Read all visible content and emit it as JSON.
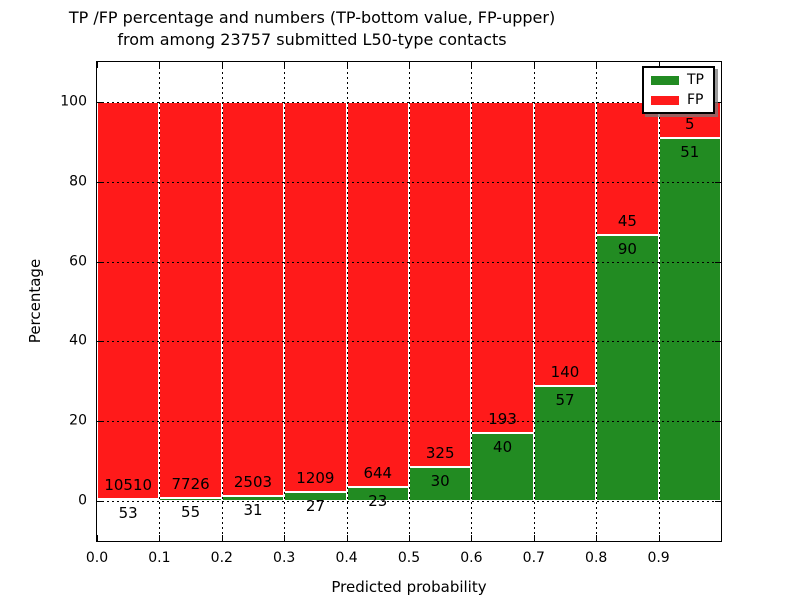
{
  "title": {
    "line1": "TP /FP percentage and numbers (TP-bottom value, FP-upper)",
    "line2": "from among 23757 submitted L50-type contacts"
  },
  "axes": {
    "x_label": "Predicted probability",
    "y_label": "Percentage",
    "x_ticks": [
      "0.0",
      "0.1",
      "0.2",
      "0.3",
      "0.4",
      "0.5",
      "0.6",
      "0.7",
      "0.8",
      "0.9"
    ],
    "y_ticks": [
      "0",
      "20",
      "40",
      "60",
      "80",
      "100"
    ]
  },
  "legend": {
    "items": [
      {
        "label": "TP",
        "color": "#228b22"
      },
      {
        "label": "FP",
        "color": "#ff1a1a"
      }
    ],
    "position": "upper right"
  },
  "chart_data": {
    "type": "bar",
    "stacked": true,
    "title": "TP /FP percentage and numbers (TP-bottom value, FP-upper) from among 23757 submitted L50-type contacts",
    "xlabel": "Predicted probability",
    "ylabel": "Percentage",
    "total_submitted": 23757,
    "bins": [
      "0.0-0.1",
      "0.1-0.2",
      "0.2-0.3",
      "0.3-0.4",
      "0.4-0.5",
      "0.5-0.6",
      "0.6-0.7",
      "0.7-0.8",
      "0.8-0.9",
      "0.9-1.0"
    ],
    "bin_centers": [
      0.05,
      0.15,
      0.25,
      0.35,
      0.45,
      0.55,
      0.65,
      0.75,
      0.85,
      0.95
    ],
    "series": [
      {
        "name": "TP",
        "color": "#228b22",
        "counts": [
          53,
          55,
          31,
          27,
          23,
          30,
          40,
          57,
          90,
          51
        ],
        "percent": [
          0.5,
          0.71,
          1.22,
          2.18,
          3.45,
          8.45,
          17.17,
          28.93,
          66.67,
          91.07
        ]
      },
      {
        "name": "FP",
        "color": "#ff1a1a",
        "counts": [
          10510,
          7726,
          2503,
          1209,
          644,
          325,
          193,
          140,
          45,
          5
        ],
        "percent": [
          99.5,
          99.29,
          98.78,
          97.82,
          96.55,
          91.55,
          82.83,
          71.07,
          33.33,
          8.93
        ]
      }
    ],
    "xlim": [
      0.0,
      1.0
    ],
    "ylim": [
      -10,
      110
    ],
    "grid": true,
    "grid_style": "dotted",
    "legend_position": "upper right"
  }
}
